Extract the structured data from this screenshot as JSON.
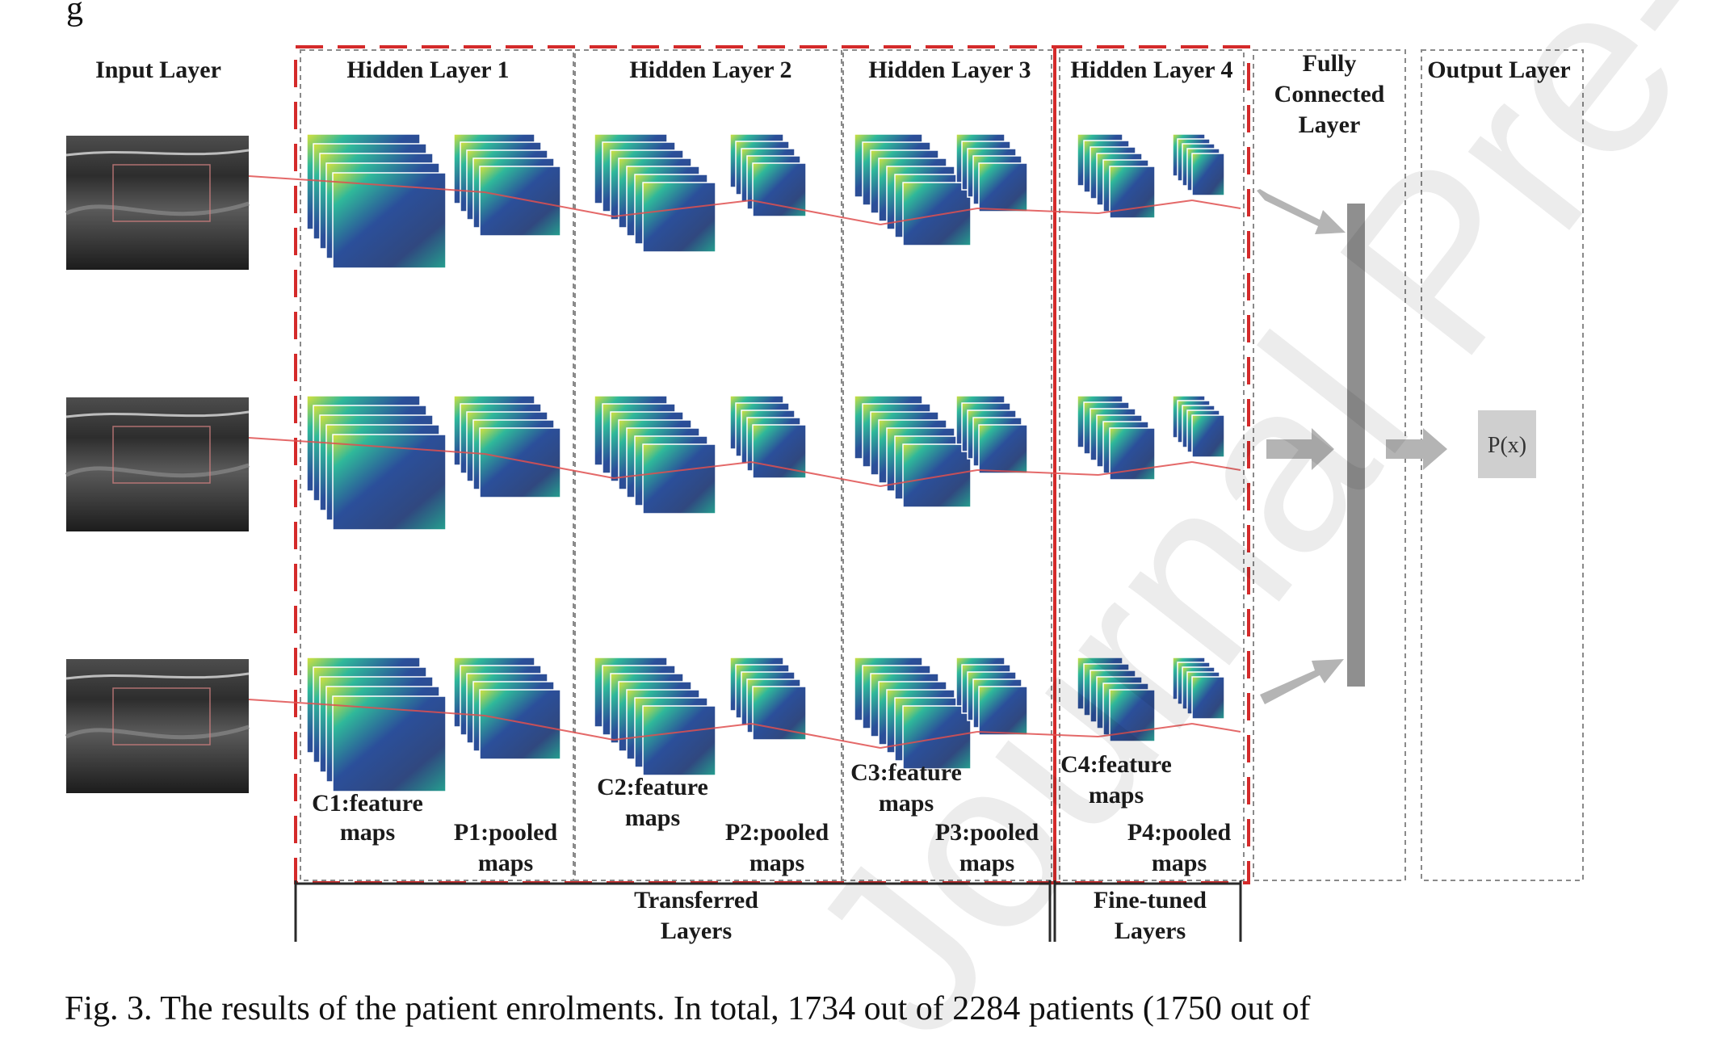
{
  "header_fragment": "g",
  "columns": {
    "input": "Input Layer",
    "hidden1": "Hidden Layer 1",
    "hidden2": "Hidden Layer 2",
    "hidden3": "Hidden Layer 3",
    "hidden4": "Hidden Layer 4",
    "fully_connected": [
      "Fully",
      "Connected",
      "Layer"
    ],
    "output": "Output Layer"
  },
  "map_labels": {
    "c1": [
      "C1:feature",
      "maps"
    ],
    "p1": [
      "P1:pooled",
      "maps"
    ],
    "c2": [
      "C2:feature",
      "maps"
    ],
    "p2": [
      "P2:pooled",
      "maps"
    ],
    "c3": [
      "C3:feature",
      "maps"
    ],
    "p3": [
      "P3:pooled",
      "maps"
    ],
    "c4": [
      "C4:feature",
      "maps"
    ],
    "p4": [
      "P4:pooled",
      "maps"
    ]
  },
  "groups": {
    "transferred": [
      "Transferred",
      "Layers"
    ],
    "fine_tuned": [
      "Fine-tuned",
      "Layers"
    ]
  },
  "output_node": "P(x)",
  "caption": "Fig. 3. The results of the patient enrolments. In total, 1734 out of 2284 patients (1750 out of",
  "watermark": "Journal Pre-proof",
  "colors": {
    "red_dash": "#d42a2a",
    "grey_dash": "#8a8a8a",
    "arrow": "#b4b4b4",
    "fc_bar": "#8f8f8f",
    "map_blue": "#2b4f9a",
    "map_green": "#2fb89a",
    "map_yellow": "#d8e23a"
  }
}
